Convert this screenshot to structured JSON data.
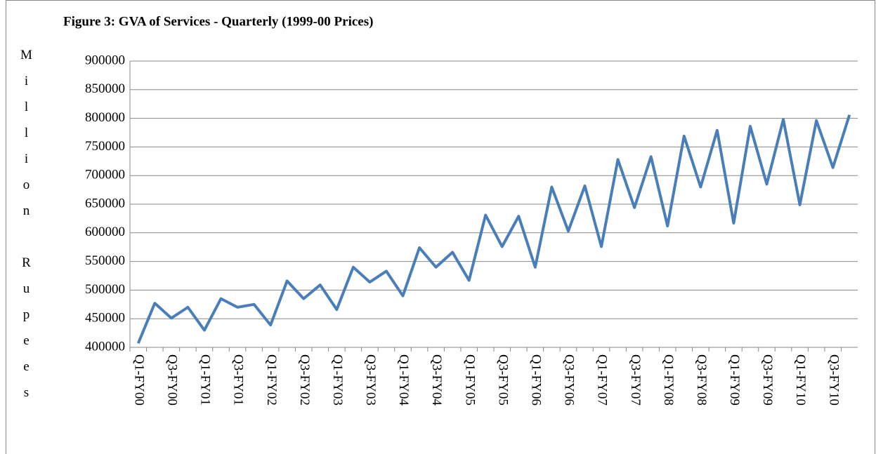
{
  "chart_data": {
    "type": "line",
    "title": "Figure 3: GVA of Services - Quarterly (1999-00 Prices)",
    "y_label": "Million Rupees",
    "categories": [
      "Q1-FY00",
      null,
      "Q3-FY00",
      null,
      "Q1-FY01",
      null,
      "Q3-FY01",
      null,
      "Q1-FY02",
      null,
      "Q3-FY02",
      null,
      "Q1-FY03",
      null,
      "Q3-FY03",
      null,
      "Q1-FY04",
      null,
      "Q3-FY04",
      null,
      "Q1-FY05",
      null,
      "Q3-FY05",
      null,
      "Q1-FY06",
      null,
      "Q3-FY06",
      null,
      "Q1-FY07",
      null,
      "Q3-FY07",
      null,
      "Q1-FY08",
      null,
      "Q3-FY08",
      null,
      "Q1-FY09",
      null,
      "Q3-FY09",
      null,
      "Q1-FY10",
      null,
      "Q3-FY10",
      null
    ],
    "series": [
      {
        "name": "GVA of Services",
        "color": "#4a7ebb",
        "values": [
          407000,
          477000,
          451000,
          470000,
          430000,
          485000,
          470000,
          475000,
          439000,
          516000,
          485000,
          509000,
          466000,
          540000,
          514000,
          533000,
          490000,
          574000,
          540000,
          566000,
          517000,
          631000,
          576000,
          629000,
          540000,
          680000,
          603000,
          682000,
          576000,
          728000,
          644000,
          733000,
          612000,
          769000,
          680000,
          779000,
          617000,
          786000,
          685000,
          798000,
          649000,
          796000,
          714000,
          806000
        ]
      }
    ],
    "ylim": [
      400000,
      900000
    ],
    "yticks": [
      400000,
      450000,
      500000,
      550000,
      600000,
      650000,
      700000,
      750000,
      800000,
      850000,
      900000
    ],
    "grid": true
  }
}
